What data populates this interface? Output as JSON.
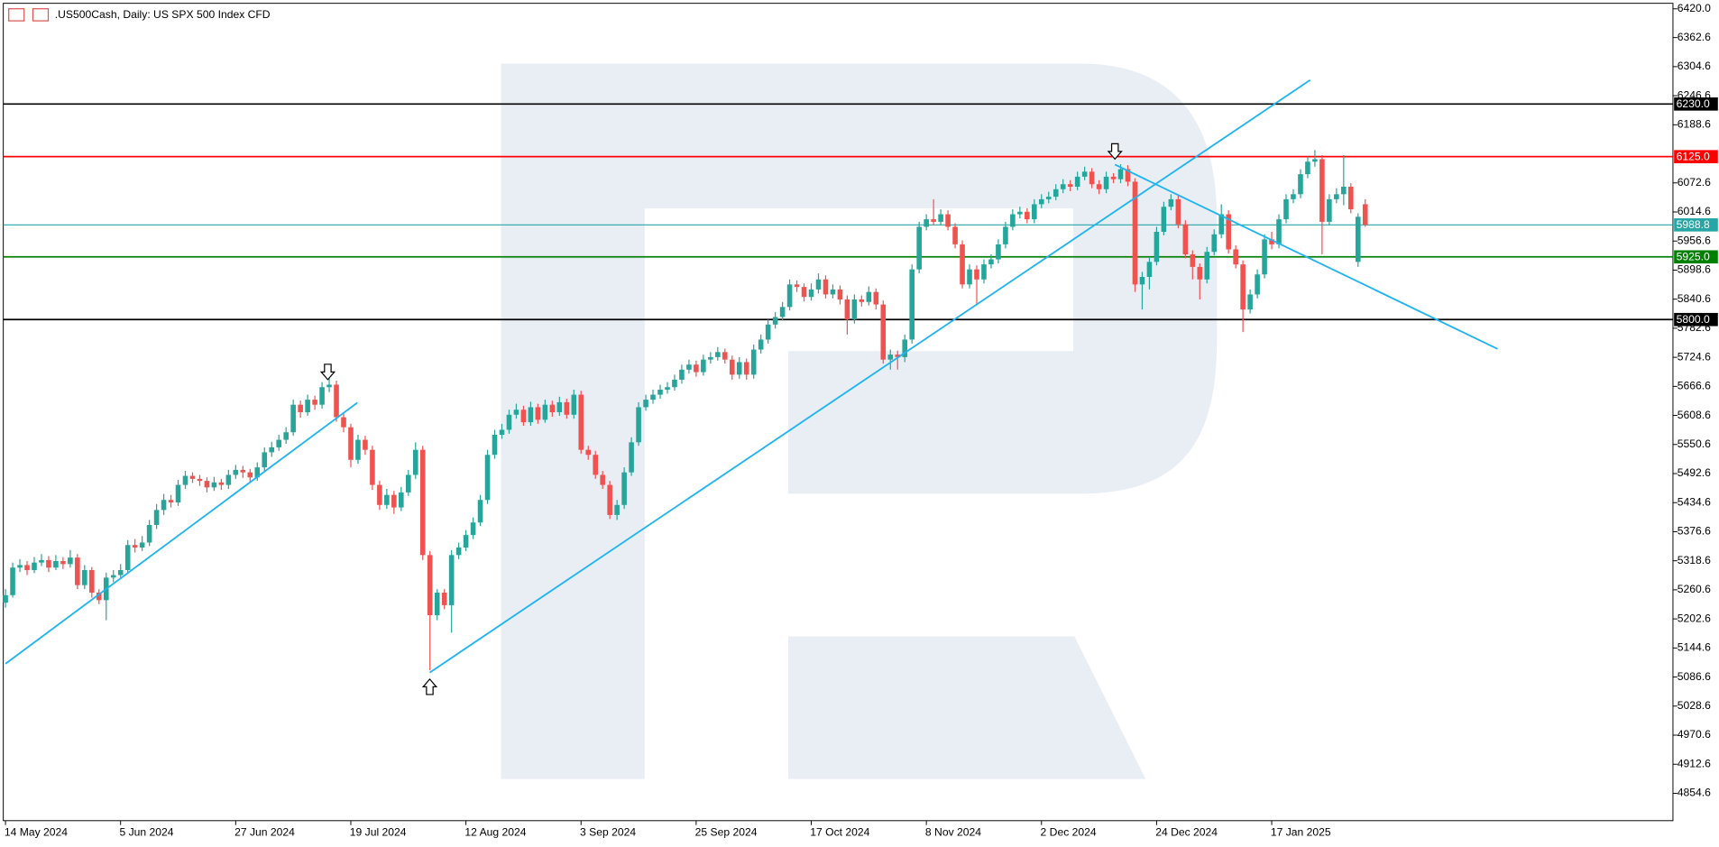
{
  "chart_data": {
    "type": "candlestick",
    "title": ".US500Cash, Daily:  US SPX 500 Index CFD",
    "up_color": "#26a69a",
    "down_color": "#ef5350",
    "grid": false,
    "ylim": [
      4800,
      6431
    ],
    "yticks": [
      {
        "value": 6420,
        "label": "6420.0"
      },
      6362.6,
      6304.6,
      6246.6,
      6188.6,
      6072.6,
      6014.6,
      5956.6,
      5898.6,
      5840.6,
      5782.6,
      5724.6,
      5666.6,
      5608.6,
      5550.6,
      5492.6,
      5434.6,
      5376.6,
      5318.6,
      5260.6,
      5202.6,
      5144.6,
      5086.6,
      5028.6,
      4970.6,
      4912.6,
      4854.6
    ],
    "levels": [
      {
        "value": 6230,
        "label": "6230.0",
        "color": "#000000"
      },
      {
        "value": 6125,
        "label": "6125.0",
        "color": "#ff0000"
      },
      {
        "value": 5988.8,
        "color": "#26a6a6"
      },
      {
        "value": 5925,
        "label": "5925.0",
        "color": "#008000"
      },
      {
        "value": 5800,
        "label": "5800.0",
        "color": "#000000"
      }
    ],
    "categories": [
      "14 May 2024",
      null,
      null,
      null,
      null,
      null,
      null,
      null,
      null,
      null,
      null,
      null,
      null,
      null,
      null,
      null,
      "5 Jun 2024",
      null,
      null,
      null,
      null,
      null,
      null,
      null,
      null,
      null,
      null,
      null,
      null,
      null,
      null,
      null,
      "27 Jun 2024",
      null,
      null,
      null,
      null,
      null,
      null,
      null,
      null,
      null,
      null,
      null,
      null,
      null,
      null,
      null,
      "19 Jul 2024",
      null,
      null,
      null,
      null,
      null,
      null,
      null,
      null,
      null,
      null,
      null,
      null,
      null,
      null,
      null,
      "12 Aug 2024",
      null,
      null,
      null,
      null,
      null,
      null,
      null,
      null,
      null,
      null,
      null,
      null,
      null,
      null,
      null,
      "3 Sep 2024",
      null,
      null,
      null,
      null,
      null,
      null,
      null,
      null,
      null,
      null,
      null,
      null,
      null,
      null,
      null,
      "25 Sep 2024",
      null,
      null,
      null,
      null,
      null,
      null,
      null,
      null,
      null,
      null,
      null,
      null,
      null,
      null,
      null,
      "17 Oct 2024",
      null,
      null,
      null,
      null,
      null,
      null,
      null,
      null,
      null,
      null,
      null,
      null,
      null,
      null,
      null,
      "8 Nov 2024",
      null,
      null,
      null,
      null,
      null,
      null,
      null,
      null,
      null,
      null,
      null,
      null,
      null,
      null,
      null,
      "2 Dec 2024",
      null,
      null,
      null,
      null,
      null,
      null,
      null,
      null,
      null,
      null,
      null,
      null,
      null,
      null,
      null,
      "24 Dec 2024",
      null,
      null,
      null,
      null,
      null,
      null,
      null,
      null,
      null,
      null,
      null,
      null,
      null,
      null,
      null,
      "17 Jan 2025",
      null,
      null,
      null,
      null,
      null,
      null,
      null,
      null,
      null,
      null,
      null,
      null,
      null
    ],
    "candles": [
      [
        5235,
        5262,
        5225,
        5250
      ],
      [
        5250,
        5315,
        5245,
        5305
      ],
      [
        5305,
        5322,
        5296,
        5310
      ],
      [
        5310,
        5318,
        5290,
        5300
      ],
      [
        5300,
        5326,
        5294,
        5315
      ],
      [
        5315,
        5332,
        5308,
        5320
      ],
      [
        5320,
        5328,
        5296,
        5305
      ],
      [
        5305,
        5330,
        5300,
        5318
      ],
      [
        5318,
        5326,
        5302,
        5312
      ],
      [
        5312,
        5340,
        5305,
        5325
      ],
      [
        5325,
        5332,
        5262,
        5270
      ],
      [
        5270,
        5310,
        5262,
        5300
      ],
      [
        5300,
        5306,
        5245,
        5255
      ],
      [
        5255,
        5262,
        5232,
        5240
      ],
      [
        5240,
        5295,
        5200,
        5285
      ],
      [
        5285,
        5300,
        5276,
        5290
      ],
      [
        5290,
        5312,
        5282,
        5300
      ],
      [
        5300,
        5360,
        5295,
        5350
      ],
      [
        5350,
        5362,
        5335,
        5345
      ],
      [
        5345,
        5368,
        5338,
        5355
      ],
      [
        5355,
        5400,
        5348,
        5390
      ],
      [
        5390,
        5432,
        5382,
        5420
      ],
      [
        5420,
        5452,
        5410,
        5440
      ],
      [
        5440,
        5450,
        5425,
        5435
      ],
      [
        5435,
        5480,
        5428,
        5470
      ],
      [
        5470,
        5498,
        5462,
        5488
      ],
      [
        5488,
        5495,
        5474,
        5482
      ],
      [
        5482,
        5490,
        5468,
        5478
      ],
      [
        5478,
        5485,
        5455,
        5465
      ],
      [
        5465,
        5486,
        5458,
        5475
      ],
      [
        5475,
        5482,
        5460,
        5470
      ],
      [
        5470,
        5500,
        5462,
        5490
      ],
      [
        5490,
        5510,
        5482,
        5500
      ],
      [
        5500,
        5508,
        5484,
        5495
      ],
      [
        5495,
        5502,
        5475,
        5485
      ],
      [
        5485,
        5515,
        5478,
        5505
      ],
      [
        5505,
        5545,
        5498,
        5535
      ],
      [
        5535,
        5556,
        5526,
        5545
      ],
      [
        5545,
        5570,
        5538,
        5560
      ],
      [
        5560,
        5585,
        5552,
        5575
      ],
      [
        5575,
        5640,
        5568,
        5630
      ],
      [
        5630,
        5638,
        5604,
        5615
      ],
      [
        5615,
        5650,
        5608,
        5640
      ],
      [
        5640,
        5648,
        5620,
        5630
      ],
      [
        5630,
        5675,
        5622,
        5665
      ],
      [
        5665,
        5685,
        5655,
        5670
      ],
      [
        5670,
        5678,
        5596,
        5605
      ],
      [
        5605,
        5612,
        5575,
        5585
      ],
      [
        5585,
        5592,
        5505,
        5520
      ],
      [
        5520,
        5570,
        5512,
        5560
      ],
      [
        5560,
        5568,
        5530,
        5540
      ],
      [
        5540,
        5548,
        5460,
        5470
      ],
      [
        5470,
        5478,
        5420,
        5430
      ],
      [
        5430,
        5462,
        5422,
        5450
      ],
      [
        5450,
        5458,
        5412,
        5425
      ],
      [
        5425,
        5466,
        5418,
        5455
      ],
      [
        5455,
        5500,
        5448,
        5490
      ],
      [
        5490,
        5555,
        5482,
        5540
      ],
      [
        5540,
        5548,
        5320,
        5330
      ],
      [
        5330,
        5338,
        5100,
        5210
      ],
      [
        5210,
        5262,
        5200,
        5255
      ],
      [
        5255,
        5262,
        5222,
        5230
      ],
      [
        5230,
        5340,
        5175,
        5330
      ],
      [
        5330,
        5355,
        5322,
        5345
      ],
      [
        5345,
        5380,
        5338,
        5370
      ],
      [
        5370,
        5405,
        5362,
        5395
      ],
      [
        5395,
        5450,
        5388,
        5440
      ],
      [
        5440,
        5540,
        5432,
        5530
      ],
      [
        5530,
        5580,
        5522,
        5570
      ],
      [
        5570,
        5592,
        5562,
        5580
      ],
      [
        5580,
        5620,
        5572,
        5610
      ],
      [
        5610,
        5632,
        5602,
        5620
      ],
      [
        5620,
        5628,
        5588,
        5595
      ],
      [
        5595,
        5636,
        5588,
        5625
      ],
      [
        5625,
        5632,
        5592,
        5600
      ],
      [
        5600,
        5640,
        5594,
        5630
      ],
      [
        5630,
        5638,
        5606,
        5615
      ],
      [
        5615,
        5646,
        5608,
        5635
      ],
      [
        5635,
        5642,
        5602,
        5610
      ],
      [
        5610,
        5660,
        5602,
        5650
      ],
      [
        5650,
        5658,
        5532,
        5540
      ],
      [
        5540,
        5548,
        5520,
        5530
      ],
      [
        5530,
        5538,
        5482,
        5490
      ],
      [
        5490,
        5498,
        5462,
        5470
      ],
      [
        5470,
        5478,
        5402,
        5410
      ],
      [
        5410,
        5440,
        5400,
        5430
      ],
      [
        5430,
        5505,
        5422,
        5495
      ],
      [
        5495,
        5565,
        5488,
        5555
      ],
      [
        5555,
        5635,
        5548,
        5625
      ],
      [
        5625,
        5650,
        5618,
        5640
      ],
      [
        5640,
        5660,
        5632,
        5650
      ],
      [
        5650,
        5670,
        5642,
        5660
      ],
      [
        5660,
        5675,
        5652,
        5665
      ],
      [
        5665,
        5690,
        5658,
        5680
      ],
      [
        5680,
        5710,
        5672,
        5700
      ],
      [
        5700,
        5720,
        5692,
        5710
      ],
      [
        5710,
        5718,
        5686,
        5695
      ],
      [
        5695,
        5730,
        5688,
        5720
      ],
      [
        5720,
        5735,
        5712,
        5725
      ],
      [
        5725,
        5745,
        5718,
        5735
      ],
      [
        5735,
        5742,
        5712,
        5720
      ],
      [
        5720,
        5728,
        5680,
        5690
      ],
      [
        5690,
        5725,
        5682,
        5715
      ],
      [
        5715,
        5722,
        5680,
        5690
      ],
      [
        5690,
        5750,
        5682,
        5740
      ],
      [
        5740,
        5770,
        5732,
        5760
      ],
      [
        5760,
        5800,
        5752,
        5790
      ],
      [
        5790,
        5815,
        5782,
        5805
      ],
      [
        5805,
        5835,
        5798,
        5825
      ],
      [
        5825,
        5880,
        5818,
        5870
      ],
      [
        5870,
        5878,
        5855,
        5865
      ],
      [
        5865,
        5872,
        5836,
        5845
      ],
      [
        5845,
        5872,
        5838,
        5860
      ],
      [
        5860,
        5892,
        5852,
        5880
      ],
      [
        5880,
        5888,
        5842,
        5850
      ],
      [
        5850,
        5870,
        5842,
        5860
      ],
      [
        5860,
        5868,
        5830,
        5840
      ],
      [
        5840,
        5848,
        5770,
        5800
      ],
      [
        5800,
        5850,
        5792,
        5840
      ],
      [
        5840,
        5848,
        5826,
        5835
      ],
      [
        5835,
        5866,
        5828,
        5855
      ],
      [
        5855,
        5862,
        5820,
        5830
      ],
      [
        5830,
        5838,
        5712,
        5720
      ],
      [
        5720,
        5740,
        5700,
        5730
      ],
      [
        5730,
        5738,
        5700,
        5725
      ],
      [
        5725,
        5770,
        5715,
        5760
      ],
      [
        5760,
        5910,
        5752,
        5900
      ],
      [
        5900,
        5995,
        5892,
        5985
      ],
      [
        5985,
        6010,
        5978,
        6000
      ],
      [
        6000,
        6040,
        5988,
        5995
      ],
      [
        5995,
        6020,
        5988,
        6010
      ],
      [
        6010,
        6018,
        5978,
        5985
      ],
      [
        5985,
        5992,
        5942,
        5950
      ],
      [
        5950,
        5958,
        5862,
        5870
      ],
      [
        5870,
        5910,
        5862,
        5900
      ],
      [
        5900,
        5908,
        5830,
        5880
      ],
      [
        5880,
        5920,
        5872,
        5910
      ],
      [
        5910,
        5930,
        5902,
        5920
      ],
      [
        5920,
        5960,
        5912,
        5950
      ],
      [
        5950,
        5995,
        5942,
        5985
      ],
      [
        5985,
        6020,
        5978,
        6010
      ],
      [
        6010,
        6025,
        6002,
        6015
      ],
      [
        6015,
        6022,
        5992,
        6000
      ],
      [
        6000,
        6040,
        5992,
        6030
      ],
      [
        6030,
        6050,
        6022,
        6040
      ],
      [
        6040,
        6055,
        6032,
        6045
      ],
      [
        6045,
        6070,
        6038,
        6060
      ],
      [
        6060,
        6080,
        6052,
        6070
      ],
      [
        6070,
        6078,
        6056,
        6065
      ],
      [
        6065,
        6095,
        6058,
        6085
      ],
      [
        6085,
        6105,
        6078,
        6095
      ],
      [
        6095,
        6102,
        6062,
        6070
      ],
      [
        6070,
        6078,
        6050,
        6060
      ],
      [
        6060,
        6095,
        6052,
        6085
      ],
      [
        6085,
        6092,
        6072,
        6080
      ],
      [
        6080,
        6110,
        6072,
        6100
      ],
      [
        6100,
        6108,
        6066,
        6075
      ],
      [
        6075,
        6082,
        5855,
        5870
      ],
      [
        5870,
        5895,
        5820,
        5885
      ],
      [
        5885,
        5925,
        5860,
        5915
      ],
      [
        5915,
        5985,
        5908,
        5975
      ],
      [
        5975,
        6035,
        5968,
        6025
      ],
      [
        6025,
        6050,
        6018,
        6040
      ],
      [
        6040,
        6048,
        5982,
        5990
      ],
      [
        5990,
        5998,
        5922,
        5930
      ],
      [
        5930,
        5938,
        5880,
        5905
      ],
      [
        5905,
        5912,
        5840,
        5880
      ],
      [
        5880,
        5945,
        5872,
        5935
      ],
      [
        5935,
        5980,
        5928,
        5970
      ],
      [
        5970,
        6030,
        5962,
        6010
      ],
      [
        6010,
        6018,
        5932,
        5940
      ],
      [
        5940,
        5948,
        5902,
        5910
      ],
      [
        5910,
        5918,
        5775,
        5820
      ],
      [
        5820,
        5860,
        5812,
        5850
      ],
      [
        5850,
        5900,
        5842,
        5890
      ],
      [
        5890,
        5970,
        5882,
        5960
      ],
      [
        5960,
        5975,
        5940,
        5950
      ],
      [
        5950,
        6010,
        5942,
        6000
      ],
      [
        6000,
        6050,
        5992,
        6040
      ],
      [
        6040,
        6060,
        6032,
        6050
      ],
      [
        6050,
        6100,
        6042,
        6090
      ],
      [
        6090,
        6125,
        6082,
        6115
      ],
      [
        6115,
        6138,
        6105,
        6120
      ],
      [
        6120,
        6128,
        5930,
        5995
      ],
      [
        5995,
        6050,
        5988,
        6040
      ],
      [
        6040,
        6062,
        6032,
        6050
      ],
      [
        6050,
        6128,
        6028,
        6065
      ],
      [
        6065,
        6072,
        6012,
        6020
      ],
      [
        5915,
        6012,
        5905,
        6005
      ],
      [
        6030,
        6040,
        5985,
        5988.8
      ]
    ]
  }
}
